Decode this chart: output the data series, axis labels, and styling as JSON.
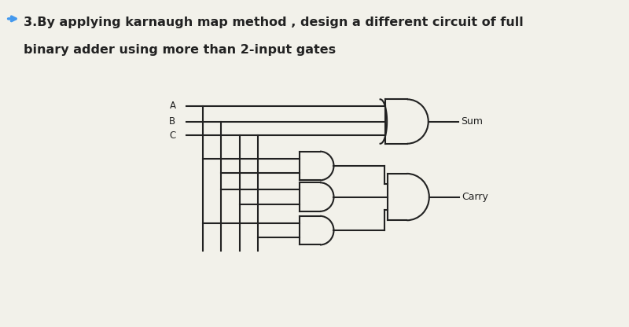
{
  "title_line1": "3.By applying karnaugh map method , design a different circuit of full",
  "title_line2": "binary adder using more than 2-input gates",
  "arrow_color": "#4499ee",
  "text_color": "#222222",
  "bg_color": "#f2f1ea",
  "input_labels": [
    "A",
    "B",
    "C"
  ],
  "output_sum": "Sum",
  "output_carry": "Carry",
  "title_fontsize": 11.5,
  "lw": 1.5
}
